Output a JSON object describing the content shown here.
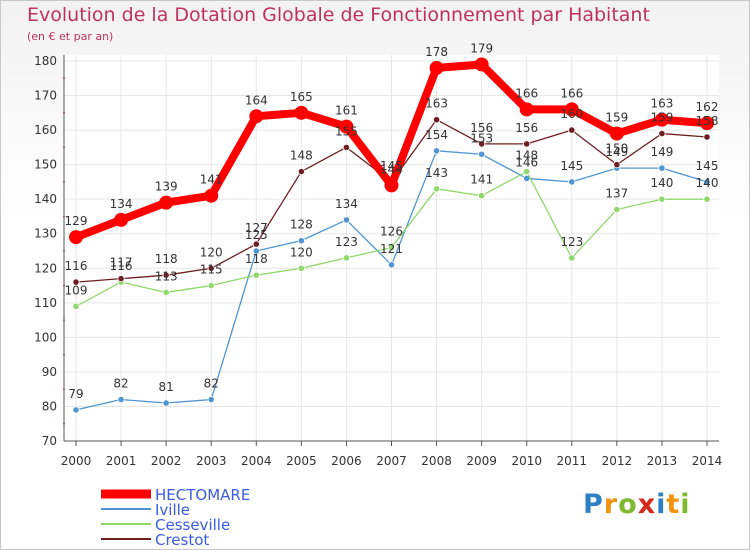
{
  "chart_data": {
    "type": "line",
    "title": "Evolution de la Dotation Globale de Fonctionnement par Habitant",
    "subtitle": "(en € et par an)",
    "xlabel": "",
    "ylabel": "",
    "ylim": [
      70,
      180
    ],
    "yticks": [
      "70",
      "80",
      "90",
      "100",
      "110",
      "120",
      "130",
      "140",
      "150",
      "160",
      "170",
      "180"
    ],
    "categories": [
      "2000",
      "2001",
      "2002",
      "2003",
      "2004",
      "2005",
      "2006",
      "2007",
      "2008",
      "2009",
      "2010",
      "2011",
      "2012",
      "2013",
      "2014"
    ],
    "grid": true,
    "legend_position": "bottom-left",
    "series": [
      {
        "name": "HECTOMARE",
        "color": "#ff0000",
        "text_color": "#3a5be3",
        "values": [
          129,
          134,
          139,
          141,
          164,
          165,
          161,
          144,
          178,
          179,
          166,
          166,
          159,
          163,
          162
        ],
        "labels": [
          "129",
          "134",
          "139",
          "141",
          "164",
          "165",
          "161",
          "144",
          "178",
          "179",
          "166",
          "166",
          "159",
          "163",
          "162"
        ]
      },
      {
        "name": "Iville",
        "color": "#4f95d3",
        "text_color": "#4f95d3",
        "values": [
          79,
          82,
          81,
          82,
          125,
          128,
          134,
          121,
          154,
          153,
          146,
          145,
          149,
          149,
          145
        ],
        "labels": [
          "79",
          "82",
          "81",
          "82",
          "125",
          "128",
          "134",
          "121",
          "154",
          "153",
          "146",
          "145",
          "149",
          "149",
          "145"
        ]
      },
      {
        "name": "Cesseville",
        "color": "#8fd86b",
        "text_color": "#8fd86b",
        "values": [
          109,
          116,
          113,
          115,
          118,
          120,
          123,
          126,
          143,
          141,
          148,
          123,
          137,
          140,
          140
        ],
        "labels": [
          "109",
          "116",
          "113",
          "115",
          "118",
          "120",
          "123",
          "126",
          "143",
          "141",
          "148",
          "123",
          "137",
          "140",
          "140"
        ]
      },
      {
        "name": "Crestot",
        "color": "#6e1e22",
        "text_color": "#6e1e22",
        "values": [
          116,
          117,
          118,
          120,
          127,
          148,
          155,
          145,
          163,
          156,
          156,
          160,
          150,
          159,
          158
        ],
        "labels": [
          "116",
          "117",
          "118",
          "120",
          "127",
          "148",
          "155",
          "145",
          "163",
          "156",
          "156",
          "160",
          "150",
          "159",
          "158"
        ]
      }
    ]
  },
  "logo": {
    "letters": [
      "P",
      "r",
      "o",
      "x",
      "i",
      "t",
      "i"
    ]
  }
}
